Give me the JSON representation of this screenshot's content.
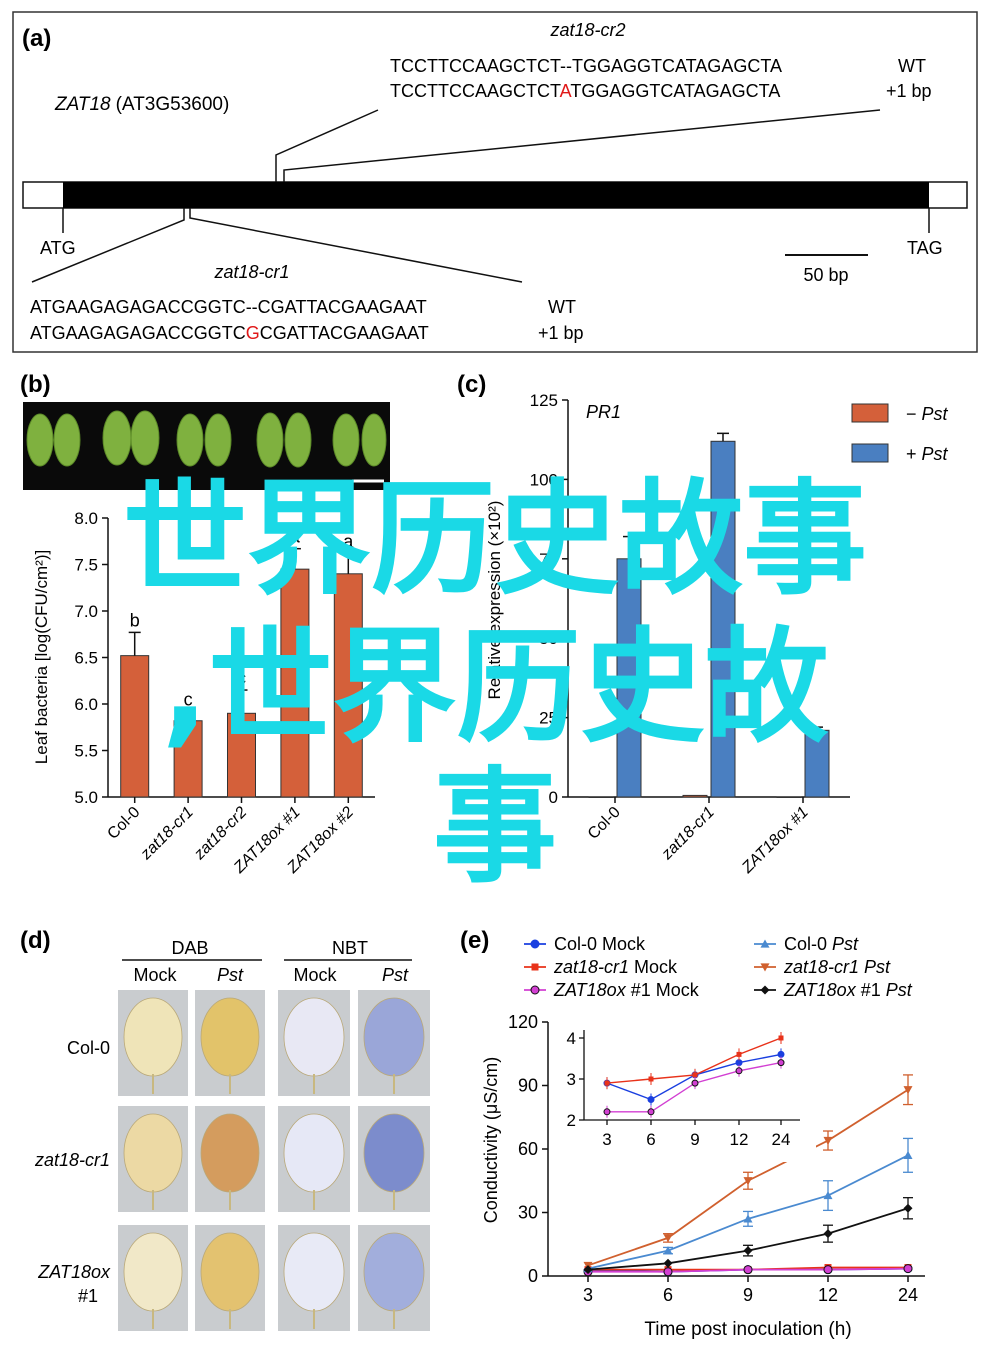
{
  "panel_a": {
    "label": "(a)",
    "gene_name": "ZAT18",
    "gene_id": "(AT3G53600)",
    "start_codon": "ATG",
    "stop_codon": "TAG",
    "scale_bar": "50 bp",
    "cr2": {
      "name": "zat18-cr2",
      "wt_seq": "TCCTTCCAAGCTCT--TGGAGGTCATAGAGCTA",
      "wt_label": "WT",
      "mut_before": "TCCTTCCAAGCTCT",
      "mut_ins": "A",
      "mut_after": "TGGAGGTCATAGAGCTA",
      "mut_label": "+1 bp"
    },
    "cr1": {
      "name": "zat18-cr1",
      "wt_seq": "ATGAAGAGAGACCGGTC--CGATTACGAAGAAT",
      "wt_label": "WT",
      "mut_before": "ATGAAGAGAGACCGGTC",
      "mut_ins": "G",
      "mut_after": "CGATTACGAAGAAT",
      "mut_label": "+1 bp"
    }
  },
  "panel_b": {
    "label": "(b)"
  },
  "panel_c": {
    "label": "(c)"
  },
  "panel_d": {
    "label": "(d)",
    "groups": [
      "DAB",
      "NBT"
    ],
    "conditions": [
      "Mock",
      "Pst",
      "Mock",
      "Pst"
    ],
    "rows": [
      "Col-0",
      "zat18-cr1",
      "ZAT18ox",
      "#1"
    ]
  },
  "panel_e": {
    "label": "(e)"
  },
  "overlay": {
    "line1": "世界历史故事",
    "line2": ",世界历史故",
    "line3": "事"
  },
  "colors": {
    "orange": "#d4603a",
    "blue": "#4a7fc1",
    "overlay": "#1ad9e6",
    "red": "#e01818"
  },
  "chart_data": [
    {
      "id": "b",
      "type": "bar",
      "ylabel": "Leaf bacteria [log(CFU/cm²)]",
      "ylim": [
        5.0,
        8.0
      ],
      "yticks": [
        "5.0",
        "5.5",
        "6.0",
        "6.5",
        "7.0",
        "7.5",
        "8.0"
      ],
      "ytick_values": [
        5.0,
        5.5,
        6.0,
        6.5,
        7.0,
        7.5,
        8.0
      ],
      "categories": [
        "Col-0",
        "zat18-cr1",
        "zat18-cr2",
        "ZAT18ox #1",
        "ZAT18ox #2"
      ],
      "values": [
        6.52,
        5.82,
        5.9,
        7.45,
        7.4
      ],
      "errors": [
        0.25,
        0.1,
        0.25,
        0.22,
        0.22
      ],
      "letters": [
        "b",
        "c",
        "c",
        "a",
        "a"
      ]
    },
    {
      "id": "c",
      "type": "bar",
      "title": "PR1",
      "ylabel": "Relative expression (×10²)",
      "ylim": [
        0,
        125
      ],
      "yticks": [
        "0",
        "25",
        "50",
        "75",
        "100",
        "125"
      ],
      "ytick_values": [
        0,
        25,
        50,
        75,
        100,
        125
      ],
      "categories": [
        "Col-0",
        "zat18-cr1",
        "ZAT18ox #1"
      ],
      "series": [
        {
          "name": "−Pst",
          "values": [
            0,
            0.5,
            0
          ],
          "errors": [
            0,
            0,
            0
          ]
        },
        {
          "name": "+Pst",
          "values": [
            75,
            112,
            21
          ],
          "errors": [
            7,
            2.5,
            1
          ]
        }
      ]
    },
    {
      "id": "e",
      "type": "line",
      "xlabel": "Time post inoculation (h)",
      "ylabel": "Conductivity (μS/cm)",
      "x": [
        3,
        6,
        9,
        12,
        24
      ],
      "xticks": [
        "3",
        "6",
        "9",
        "12",
        "24"
      ],
      "ylim": [
        0,
        120
      ],
      "yticks": [
        "0",
        "30",
        "60",
        "90",
        "120"
      ],
      "ytick_values": [
        0,
        30,
        60,
        90,
        120
      ],
      "series": [
        {
          "name": "Col-0 Mock",
          "values": [
            2.5,
            2,
            3,
            3,
            3.5
          ],
          "errors": [
            0.5,
            0.5,
            0.5,
            0.5,
            0.5
          ]
        },
        {
          "name": "zat18-cr1 Mock",
          "values": [
            3,
            3,
            3,
            4,
            4
          ],
          "errors": [
            0.5,
            0.5,
            0.5,
            0.5,
            0.5
          ]
        },
        {
          "name": "ZAT18ox #1 Mock",
          "values": [
            2,
            2,
            3,
            3,
            3.5
          ],
          "errors": [
            0.5,
            0.5,
            0.5,
            0.5,
            0.5
          ]
        },
        {
          "name": "Col-0 Pst",
          "values": [
            3.5,
            12,
            27,
            38,
            57
          ],
          "errors": [
            0.5,
            1.5,
            3.5,
            7,
            8
          ]
        },
        {
          "name": "zat18-cr1 Pst",
          "values": [
            5,
            18,
            45,
            64,
            88
          ],
          "errors": [
            0.8,
            2,
            4,
            4.5,
            7
          ]
        },
        {
          "name": "ZAT18ox #1 Pst",
          "values": [
            3,
            6,
            12,
            20,
            32
          ],
          "errors": [
            0.5,
            1,
            2.5,
            4,
            5
          ]
        }
      ],
      "inset": {
        "ylim": [
          2,
          4
        ],
        "yticks": [
          "2",
          "3",
          "4"
        ],
        "ytick_values": [
          2,
          3,
          4
        ],
        "series": [
          {
            "name": "Col-0 Mock",
            "values": [
              2.9,
              2.5,
              3.1,
              3.4,
              3.6
            ]
          },
          {
            "name": "zat18-cr1 Mock",
            "values": [
              2.9,
              3.0,
              3.1,
              3.6,
              4.0
            ]
          },
          {
            "name": "ZAT18ox #1 Mock",
            "values": [
              2.2,
              2.2,
              2.9,
              3.2,
              3.4
            ]
          }
        ]
      }
    }
  ]
}
